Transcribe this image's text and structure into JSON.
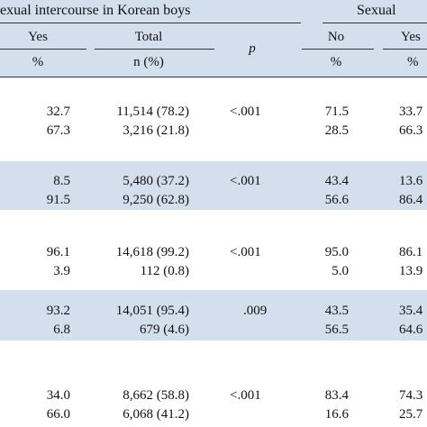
{
  "header": {
    "group_left_title": "exual intercourse in Korean boys",
    "group_right_title": "Sexual",
    "columns": {
      "yes": "Yes",
      "total": "Total",
      "p": "p",
      "no": "No",
      "yes2": "Yes"
    },
    "units": {
      "yes": "%",
      "total": "n (%)",
      "no": "%",
      "yes2": "%"
    }
  },
  "rows": [
    {
      "yes": "32.7",
      "total": "11,514 (78.2)",
      "p": "<.001",
      "no": "71.5",
      "yes2": "33.7"
    },
    {
      "yes": "67.3",
      "total": "3,216 (21.8)",
      "p": "",
      "no": "28.5",
      "yes2": "66.3"
    },
    {
      "yes": "8.5",
      "total": "5,480 (37.2)",
      "p": "<.001",
      "no": "43.4",
      "yes2": "13.6"
    },
    {
      "yes": "91.5",
      "total": "9,250 (62.8)",
      "p": "",
      "no": "56.6",
      "yes2": "86.4"
    },
    {
      "yes": "96.1",
      "total": "14,618 (99.2)",
      "p": "<.001",
      "no": "95.0",
      "yes2": "86.1"
    },
    {
      "yes": "3.9",
      "total": "112 (0.8)",
      "p": "",
      "no": "5.0",
      "yes2": "13.9"
    },
    {
      "yes": "93.2",
      "total": "14,051 (95.4)",
      "p": ".009",
      "no": "43.5",
      "yes2": "35.4"
    },
    {
      "yes": "6.8",
      "total": "679 (4.6)",
      "p": "",
      "no": "56.5",
      "yes2": "64.6"
    },
    {
      "yes": "34.0",
      "total": "8,662 (58.8)",
      "p": "<.001",
      "no": "83.4",
      "yes2": "74.3"
    },
    {
      "yes": "66.0",
      "total": "6,068 (41.2)",
      "p": "",
      "no": "16.6",
      "yes2": "25.7"
    }
  ]
}
